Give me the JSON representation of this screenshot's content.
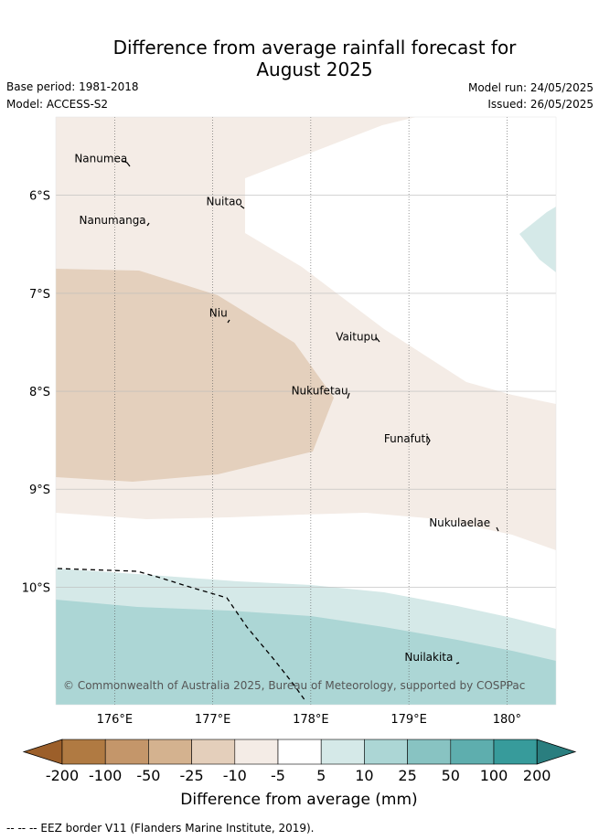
{
  "title": {
    "line1": "Difference from average rainfall forecast for",
    "line2": "August 2025"
  },
  "meta": {
    "base_period": "Base period: 1981-2018",
    "model": "Model: ACCESS-S2",
    "model_run": "Model run: 24/05/2025",
    "issued": "Issued: 26/05/2025"
  },
  "map": {
    "lon_range": [
      175.4,
      180.5
    ],
    "lat_range": [
      -11.2,
      -5.2
    ],
    "lon_ticks": [
      {
        "value": 176,
        "label": "176°E"
      },
      {
        "value": 177,
        "label": "177°E"
      },
      {
        "value": 178,
        "label": "178°E"
      },
      {
        "value": 179,
        "label": "179°E"
      },
      {
        "value": 180,
        "label": "180°"
      }
    ],
    "lat_ticks": [
      {
        "value": -6,
        "label": "6°S"
      },
      {
        "value": -7,
        "label": "7°S"
      },
      {
        "value": -8,
        "label": "8°S"
      },
      {
        "value": -9,
        "label": "9°S"
      },
      {
        "value": -10,
        "label": "10°S"
      }
    ],
    "places": [
      {
        "name": "Nanumea",
        "lon": 176.13,
        "lat": -5.66
      },
      {
        "name": "Nuitao",
        "lon": 177.3,
        "lat": -6.1
      },
      {
        "name": "Nanumanga",
        "lon": 176.32,
        "lat": -6.29
      },
      {
        "name": "Niu",
        "lon": 177.15,
        "lat": -7.24
      },
      {
        "name": "Vaitupu",
        "lon": 178.68,
        "lat": -7.48
      },
      {
        "name": "Nukufetau",
        "lon": 178.38,
        "lat": -8.03
      },
      {
        "name": "Funafuti",
        "lon": 179.2,
        "lat": -8.52
      },
      {
        "name": "Nukulaelae",
        "lon": 179.83,
        "lat": -9.38
      },
      {
        "name": "Nuilakita",
        "lon": 179.45,
        "lat": -10.75
      }
    ],
    "credit": "© Commonwealth of Australia 2025, Bureau of Meteorology, supported by COSPPac"
  },
  "colorbar": {
    "labels": [
      "-200",
      "-100",
      "-50",
      "-25",
      "-10",
      "-5",
      "5",
      "10",
      "25",
      "50",
      "100",
      "200"
    ],
    "colors": [
      "#9c5f2a",
      "#b07a42",
      "#c4966a",
      "#d4b28f",
      "#e4cfbb",
      "#f4ece6",
      "#ffffff",
      "#d5e9e8",
      "#acd6d5",
      "#88c3c2",
      "#5eaeae",
      "#379b9b",
      "#2a7e7f"
    ],
    "title": "Difference from average (mm)"
  },
  "footer": "-- -- -- EEZ border V11 (Flanders Marine Institute, 2019)."
}
